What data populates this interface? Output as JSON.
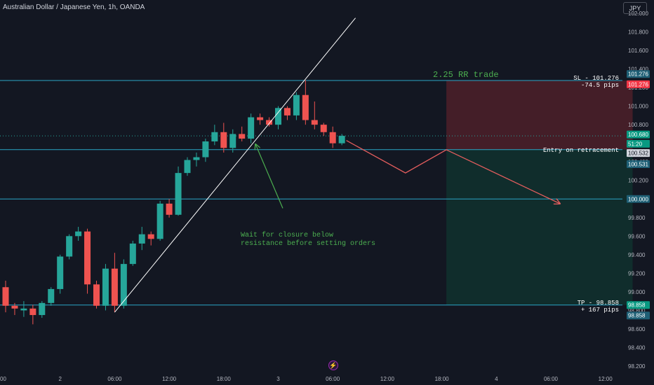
{
  "header": {
    "symbol_title": "Australian Dollar / Japanese Yen, 1h, OANDA",
    "currency_button": "JPY"
  },
  "colors": {
    "background": "#131722",
    "bull": "#26a69a",
    "bear": "#ef5350",
    "hline": "#2ba5c6",
    "annotation_green": "#4caf50",
    "arrow": "#e35d5d",
    "stop_zone": "#4a1f29",
    "target_zone": "#11302e"
  },
  "annotations": {
    "note_line1": "Wait for closure below",
    "note_line2": "resistance before setting orders",
    "rr_title": "2.25 RR trade",
    "sl_line1": "SL - 101.276",
    "sl_line2": "-74.5 pips",
    "entry": "Entry on retracement",
    "tp_line1": "TP - 98.858",
    "tp_line2": "+ 167 pips",
    "logo_icon": "lightning-icon"
  },
  "chart_data": {
    "type": "candlestick",
    "title": "Australian Dollar / Japanese Yen, 1h, OANDA",
    "y_axis": {
      "ticks": [
        "98.200",
        "98.400",
        "98.600",
        "98.800",
        "99.000",
        "99.200",
        "99.400",
        "99.600",
        "99.800",
        "100.000",
        "100.200",
        "100.400",
        "100.600",
        "100.800",
        "101.000",
        "101.200",
        "101.400",
        "101.600",
        "101.800",
        "102.000"
      ],
      "range": [
        98.15,
        102.05
      ]
    },
    "x_axis": {
      "ticks": [
        {
          "label": "00",
          "hour": 0
        },
        {
          "label": "2",
          "hour": 6
        },
        {
          "label": "06:00",
          "hour": 12
        },
        {
          "label": "12:00",
          "hour": 18
        },
        {
          "label": "18:00",
          "hour": 24
        },
        {
          "label": "3",
          "hour": 30
        },
        {
          "label": "06:00",
          "hour": 36
        },
        {
          "label": "12:00",
          "hour": 42
        },
        {
          "label": "18:00",
          "hour": 48
        },
        {
          "label": "4",
          "hour": 54
        },
        {
          "label": "06:00",
          "hour": 60
        },
        {
          "label": "12:00",
          "hour": 66
        }
      ]
    },
    "candles": [
      {
        "h": 0,
        "o": 99.05,
        "hi": 99.12,
        "lo": 98.78,
        "c": 98.85
      },
      {
        "h": 1,
        "o": 98.85,
        "hi": 98.88,
        "lo": 98.75,
        "c": 98.82
      },
      {
        "h": 2,
        "o": 98.8,
        "hi": 98.9,
        "lo": 98.73,
        "c": 98.82
      },
      {
        "h": 3,
        "o": 98.82,
        "hi": 98.86,
        "lo": 98.65,
        "c": 98.75
      },
      {
        "h": 4,
        "o": 98.75,
        "hi": 98.9,
        "lo": 98.72,
        "c": 98.88
      },
      {
        "h": 5,
        "o": 98.88,
        "hi": 99.05,
        "lo": 98.85,
        "c": 99.03
      },
      {
        "h": 6,
        "o": 99.03,
        "hi": 99.4,
        "lo": 98.98,
        "c": 99.38
      },
      {
        "h": 7,
        "o": 99.38,
        "hi": 99.62,
        "lo": 99.35,
        "c": 99.6
      },
      {
        "h": 8,
        "o": 99.6,
        "hi": 99.7,
        "lo": 99.55,
        "c": 99.65
      },
      {
        "h": 9,
        "o": 99.65,
        "hi": 99.68,
        "lo": 98.98,
        "c": 99.08
      },
      {
        "h": 10,
        "o": 99.08,
        "hi": 99.12,
        "lo": 98.82,
        "c": 98.85
      },
      {
        "h": 11,
        "o": 98.85,
        "hi": 99.3,
        "lo": 98.8,
        "c": 99.25
      },
      {
        "h": 12,
        "o": 99.25,
        "hi": 99.42,
        "lo": 98.78,
        "c": 98.85
      },
      {
        "h": 13,
        "o": 98.85,
        "hi": 99.35,
        "lo": 98.82,
        "c": 99.3
      },
      {
        "h": 14,
        "o": 99.3,
        "hi": 99.55,
        "lo": 99.28,
        "c": 99.52
      },
      {
        "h": 15,
        "o": 99.52,
        "hi": 99.7,
        "lo": 99.45,
        "c": 99.62
      },
      {
        "h": 16,
        "o": 99.62,
        "hi": 99.65,
        "lo": 99.5,
        "c": 99.57
      },
      {
        "h": 17,
        "o": 99.57,
        "hi": 99.98,
        "lo": 99.55,
        "c": 99.95
      },
      {
        "h": 18,
        "o": 99.95,
        "hi": 100.0,
        "lo": 99.8,
        "c": 99.83
      },
      {
        "h": 19,
        "o": 99.83,
        "hi": 100.35,
        "lo": 99.82,
        "c": 100.28
      },
      {
        "h": 20,
        "o": 100.28,
        "hi": 100.45,
        "lo": 100.25,
        "c": 100.42
      },
      {
        "h": 21,
        "o": 100.42,
        "hi": 100.5,
        "lo": 100.35,
        "c": 100.45
      },
      {
        "h": 22,
        "o": 100.45,
        "hi": 100.65,
        "lo": 100.4,
        "c": 100.62
      },
      {
        "h": 23,
        "o": 100.62,
        "hi": 100.8,
        "lo": 100.58,
        "c": 100.72
      },
      {
        "h": 24,
        "o": 100.72,
        "hi": 100.82,
        "lo": 100.5,
        "c": 100.55
      },
      {
        "h": 25,
        "o": 100.55,
        "hi": 100.75,
        "lo": 100.5,
        "c": 100.7
      },
      {
        "h": 26,
        "o": 100.7,
        "hi": 100.78,
        "lo": 100.62,
        "c": 100.65
      },
      {
        "h": 27,
        "o": 100.65,
        "hi": 100.92,
        "lo": 100.6,
        "c": 100.88
      },
      {
        "h": 28,
        "o": 100.88,
        "hi": 100.92,
        "lo": 100.8,
        "c": 100.85
      },
      {
        "h": 29,
        "o": 100.85,
        "hi": 100.88,
        "lo": 100.78,
        "c": 100.8
      },
      {
        "h": 30,
        "o": 100.8,
        "hi": 101.0,
        "lo": 100.75,
        "c": 100.98
      },
      {
        "h": 31,
        "o": 100.98,
        "hi": 101.0,
        "lo": 100.85,
        "c": 100.9
      },
      {
        "h": 32,
        "o": 100.9,
        "hi": 101.15,
        "lo": 100.85,
        "c": 101.12
      },
      {
        "h": 33,
        "o": 101.12,
        "hi": 101.28,
        "lo": 100.8,
        "c": 100.85
      },
      {
        "h": 34,
        "o": 100.85,
        "hi": 101.05,
        "lo": 100.75,
        "c": 100.8
      },
      {
        "h": 35,
        "o": 100.8,
        "hi": 100.82,
        "lo": 100.68,
        "c": 100.72
      },
      {
        "h": 36,
        "o": 100.72,
        "hi": 100.78,
        "lo": 100.55,
        "c": 100.6
      },
      {
        "h": 37,
        "o": 100.6,
        "hi": 100.7,
        "lo": 100.58,
        "c": 100.68
      }
    ],
    "horizontal_lines": [
      {
        "name": "sl_line",
        "price": 101.276
      },
      {
        "name": "entry_line",
        "price": 100.532
      },
      {
        "name": "round_line",
        "price": 100.0
      },
      {
        "name": "tp_line",
        "price": 98.858
      }
    ],
    "current_price_line": 100.68,
    "trend_line": [
      {
        "hour": 12,
        "price": 98.78
      },
      {
        "hour": 38.5,
        "price": 101.95
      }
    ],
    "projection": [
      {
        "hour": 37.5,
        "price": 100.63
      },
      {
        "hour": 44,
        "price": 100.28
      },
      {
        "hour": 48.5,
        "price": 100.53
      },
      {
        "hour": 61,
        "price": 99.95
      }
    ],
    "note_arrow": [
      {
        "hour": 30.5,
        "price": 99.9
      },
      {
        "hour": 27.5,
        "price": 100.59
      }
    ],
    "trade_box": {
      "start_hour": 48.5,
      "end_hour": 69,
      "entry": 100.532,
      "stop": 101.276,
      "target": 98.858
    },
    "price_tags": [
      {
        "text": "101.276",
        "price": 101.346,
        "style": "blue"
      },
      {
        "text": "101.276",
        "price": 101.236,
        "style": "red"
      },
      {
        "text": "100.680",
        "price": 100.695,
        "style": "teal"
      },
      {
        "text": "51:20",
        "price": 100.595,
        "style": "teal"
      },
      {
        "text": "100.532",
        "price": 100.495,
        "style": "gray"
      },
      {
        "text": "100.531",
        "price": 100.375,
        "style": "blue"
      },
      {
        "text": "100.000",
        "price": 100.0,
        "style": "blue"
      },
      {
        "text": "98.858",
        "price": 98.858,
        "style": "teal"
      },
      {
        "text": "98.858",
        "price": 98.745,
        "style": "blue"
      }
    ]
  }
}
